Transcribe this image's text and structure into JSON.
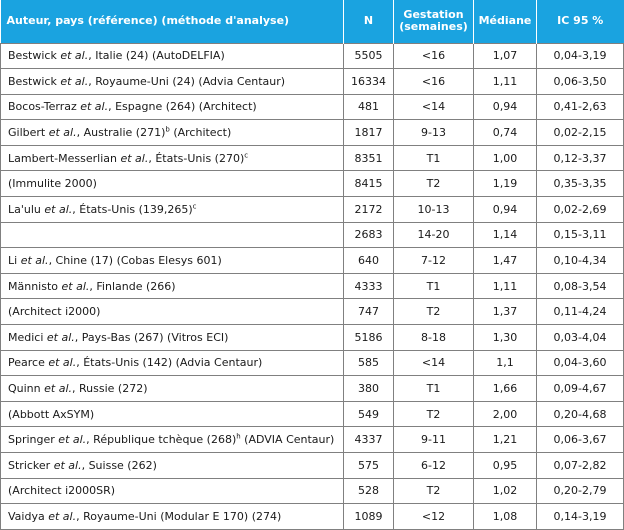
{
  "header": {
    "study": "Auteur, pays (référence) (méthode d'analyse)",
    "n": "N",
    "gestation": "Gestation (semaines)",
    "median": "Médiane",
    "ic": "IC 95 %"
  },
  "rows": [
    {
      "author": "Bestwick",
      "etal": "et al.",
      "text": ", Italie (24) (AutoDELFIA)",
      "sup": "",
      "tail": "",
      "n": "5505",
      "gest": "<16",
      "median": "1,07",
      "ci": "0,04-3,19"
    },
    {
      "author": "Bestwick",
      "etal": "et al.",
      "text": ", Royaume-Uni (24) (Advia Centaur)",
      "sup": "",
      "tail": "",
      "n": "16334",
      "gest": "<16",
      "median": "1,11",
      "ci": "0,06-3,50"
    },
    {
      "author": "Bocos-Terraz",
      "etal": "et al.",
      "text": ", Espagne (264) (Architect)",
      "sup": "",
      "tail": "",
      "n": "481",
      "gest": "<14",
      "median": "0,94",
      "ci": "0,41-2,63"
    },
    {
      "author": "Gilbert",
      "etal": "et al.",
      "text": ", Australie (271)",
      "sup": "b",
      "tail": " (Architect)",
      "n": "1817",
      "gest": "9-13",
      "median": "0,74",
      "ci": "0,02-2,15"
    },
    {
      "author": "Lambert-Messerlian",
      "etal": "et al.",
      "text": ", États-Unis (270)",
      "sup": "c",
      "tail": "",
      "n": "8351",
      "gest": "T1",
      "median": "1,00",
      "ci": "0,12-3,37"
    },
    {
      "author": "(Immulite 2000)",
      "etal": "",
      "text": "",
      "sup": "",
      "tail": "",
      "n": "8415",
      "gest": "T2",
      "median": "1,19",
      "ci": "0,35-3,35"
    },
    {
      "author": "La'ulu",
      "etal": "et al.",
      "text": ", États-Unis (139,265)",
      "sup": "c",
      "tail": "",
      "n": "2172",
      "gest": "10-13",
      "median": "0,94",
      "ci": "0,02-2,69"
    },
    {
      "author": "",
      "etal": "",
      "text": "",
      "sup": "",
      "tail": "",
      "n": "2683",
      "gest": "14-20",
      "median": "1,14",
      "ci": "0,15-3,11"
    },
    {
      "author": "Li",
      "etal": "et al.",
      "text": ", Chine (17) (Cobas Elesys 601)",
      "sup": "",
      "tail": "",
      "n": "640",
      "gest": "7-12",
      "median": "1,47",
      "ci": "0,10-4,34"
    },
    {
      "author": "Männisto",
      "etal": "et al.",
      "text": ", Finlande (266)",
      "sup": "",
      "tail": "",
      "n": "4333",
      "gest": "T1",
      "median": "1,11",
      "ci": "0,08-3,54"
    },
    {
      "author": "(Architect i2000)",
      "etal": "",
      "text": "",
      "sup": "",
      "tail": "",
      "n": "747",
      "gest": "T2",
      "median": "1,37",
      "ci": "0,11-4,24"
    },
    {
      "author": "Medici",
      "etal": "et al.",
      "text": ", Pays-Bas (267) (Vitros ECI)",
      "sup": "",
      "tail": "",
      "n": "5186",
      "gest": "8-18",
      "median": "1,30",
      "ci": "0,03-4,04"
    },
    {
      "author": "Pearce",
      "etal": "et al.",
      "text": ", États-Unis (142) (Advia Centaur)",
      "sup": "",
      "tail": "",
      "n": "585",
      "gest": "<14",
      "median": "1,1",
      "ci": "0,04-3,60"
    },
    {
      "author": "Quinn",
      "etal": "et al.",
      "text": ", Russie (272)",
      "sup": "",
      "tail": "",
      "n": "380",
      "gest": "T1",
      "median": "1,66",
      "ci": "0,09-4,67"
    },
    {
      "author": "(Abbott AxSYM)",
      "etal": "",
      "text": "",
      "sup": "",
      "tail": "",
      "n": "549",
      "gest": "T2",
      "median": "2,00",
      "ci": "0,20-4,68"
    },
    {
      "author": "Springer",
      "etal": "et al.",
      "text": ", République tchèque (268)",
      "sup": "h",
      "tail": " (ADVIA Centaur)",
      "n": "4337",
      "gest": "9-11",
      "median": "1,21",
      "ci": "0,06-3,67"
    },
    {
      "author": "Stricker",
      "etal": "et al.",
      "text": ", Suisse (262)",
      "sup": "",
      "tail": "",
      "n": "575",
      "gest": "6-12",
      "median": "0,95",
      "ci": "0,07-2,82"
    },
    {
      "author": "(Architect i2000SR)",
      "etal": "",
      "text": "",
      "sup": "",
      "tail": "",
      "n": "528",
      "gest": "T2",
      "median": "1,02",
      "ci": "0,20-2,79"
    },
    {
      "author": "Vaidya",
      "etal": "et al.",
      "text": ", Royaume-Uni (Modular E 170) (274)",
      "sup": "",
      "tail": "",
      "n": "1089",
      "gest": "<12",
      "median": "1,08",
      "ci": "0,14-3,19"
    }
  ],
  "colors": {
    "header_bg": "#1aa3e0",
    "header_text": "#ffffff",
    "border": "#808080"
  }
}
